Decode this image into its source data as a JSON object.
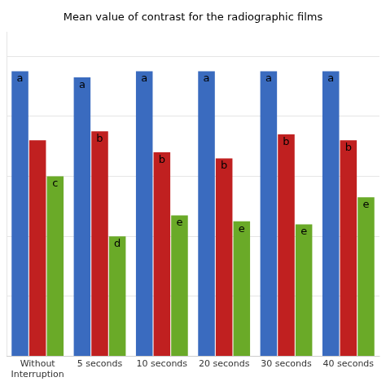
{
  "chart_data": {
    "type": "bar",
    "title": "Mean value of contrast for the radiographic films",
    "categories": [
      "Without\nInterruption",
      "5 seconds",
      "10 seconds",
      "20 seconds",
      "30 seconds",
      "40 seconds"
    ],
    "series": [
      {
        "color": "#3a6bbf",
        "values": [
          0.95,
          0.93,
          0.95,
          0.95,
          0.95,
          0.95
        ],
        "annotations": [
          "a",
          "a",
          "a",
          "a",
          "a",
          "a"
        ]
      },
      {
        "color": "#c02020",
        "values": [
          0.72,
          0.75,
          0.68,
          0.66,
          0.74,
          0.72
        ],
        "annotations": [
          null,
          "b",
          "b",
          "b",
          "b",
          "b"
        ]
      },
      {
        "color": "#6aaa28",
        "values": [
          0.6,
          0.4,
          0.47,
          0.45,
          0.44,
          0.53
        ],
        "annotations": [
          "c",
          "d",
          "e",
          "e",
          "e",
          "e"
        ]
      }
    ],
    "ylim": [
      0.0,
      1.08
    ],
    "yticks": [
      0,
      0.2,
      0.4,
      0.6,
      0.8,
      1.0
    ],
    "grid": true,
    "tick_labels": "x"
  }
}
